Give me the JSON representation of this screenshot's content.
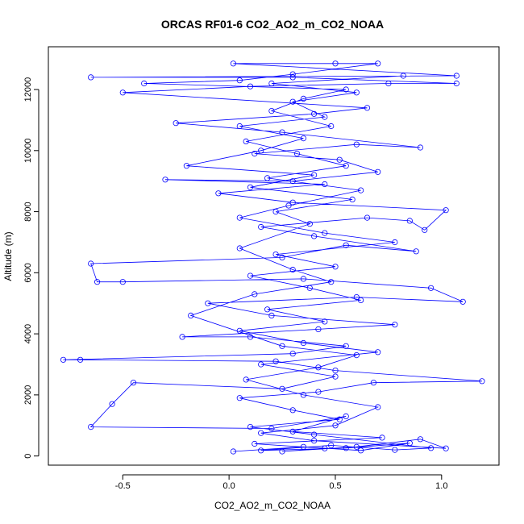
{
  "chart_data": {
    "type": "scatter",
    "title": "ORCAS RF01-6 CO2_AO2_m_CO2_NOAA",
    "xlabel": "CO2_AO2_m_CO2_NOAA",
    "ylabel": "Altitude (m)",
    "xlim": [
      -0.85,
      1.27
    ],
    "ylim": [
      -300,
      13400
    ],
    "x_ticks": [
      -0.5,
      0.0,
      0.5,
      1.0
    ],
    "x_tick_labels": [
      "-0.5",
      "0.0",
      "0.5",
      "1.0"
    ],
    "y_ticks": [
      0,
      2000,
      4000,
      6000,
      8000,
      10000,
      12000
    ],
    "y_tick_labels": [
      "0",
      "2000",
      "4000",
      "6000",
      "8000",
      "10000",
      "12000"
    ],
    "grid": false,
    "legend": "none",
    "series_color": "#0000ff",
    "marker": "open-circle",
    "connected": true,
    "series": [
      {
        "values": [
          [
            0.02,
            150
          ],
          [
            0.35,
            300
          ],
          [
            0.62,
            180
          ],
          [
            0.85,
            420
          ],
          [
            0.55,
            260
          ],
          [
            0.15,
            180
          ],
          [
            0.48,
            350
          ],
          [
            0.78,
            200
          ],
          [
            0.95,
            260
          ],
          [
            0.4,
            700
          ],
          [
            0.1,
            950
          ],
          [
            0.52,
            1200
          ],
          [
            0.3,
            1500
          ],
          [
            0.05,
            1900
          ],
          [
            0.42,
            2100
          ],
          [
            0.68,
            2400
          ],
          [
            1.19,
            2450
          ],
          [
            0.5,
            2800
          ],
          [
            0.22,
            3100
          ],
          [
            -0.7,
            3150
          ],
          [
            -0.78,
            3150
          ],
          [
            0.3,
            3350
          ],
          [
            0.55,
            3600
          ],
          [
            0.1,
            3900
          ],
          [
            -0.22,
            3900
          ],
          [
            0.42,
            4150
          ],
          [
            0.78,
            4300
          ],
          [
            0.2,
            4600
          ],
          [
            -0.1,
            5000
          ],
          [
            0.6,
            5200
          ],
          [
            1.1,
            5050
          ],
          [
            0.95,
            5500
          ],
          [
            0.35,
            5800
          ],
          [
            -0.5,
            5700
          ],
          [
            -0.62,
            5700
          ],
          [
            -0.65,
            6300
          ],
          [
            0.25,
            6500
          ],
          [
            0.55,
            6900
          ],
          [
            0.88,
            6700
          ],
          [
            0.4,
            7200
          ],
          [
            0.15,
            7500
          ],
          [
            0.65,
            7800
          ],
          [
            0.85,
            7700
          ],
          [
            0.92,
            7400
          ],
          [
            1.02,
            8050
          ],
          [
            0.3,
            8300
          ],
          [
            -0.05,
            8600
          ],
          [
            0.45,
            8900
          ],
          [
            -0.3,
            9050
          ],
          [
            0.3,
            9000
          ],
          [
            0.7,
            9300
          ],
          [
            0.52,
            9700
          ],
          [
            0.12,
            9900
          ],
          [
            0.6,
            10200
          ],
          [
            0.9,
            10100
          ],
          [
            0.25,
            10600
          ],
          [
            -0.25,
            10900
          ],
          [
            0.4,
            11200
          ],
          [
            0.65,
            11400
          ],
          [
            -0.5,
            11900
          ],
          [
            0.1,
            12100
          ],
          [
            0.75,
            12200
          ],
          [
            1.07,
            12200
          ],
          [
            0.3,
            12400
          ],
          [
            -0.65,
            12400
          ],
          [
            1.07,
            12450
          ],
          [
            0.02,
            12850
          ],
          [
            0.5,
            12850
          ],
          [
            0.7,
            12850
          ],
          [
            0.3,
            12500
          ],
          [
            0.05,
            12300
          ],
          [
            -0.4,
            12200
          ],
          [
            0.55,
            12000
          ],
          [
            0.35,
            11700
          ],
          [
            0.2,
            11300
          ],
          [
            0.48,
            10800
          ],
          [
            0.08,
            10300
          ],
          [
            0.32,
            9900
          ],
          [
            0.55,
            9500
          ],
          [
            0.18,
            9100
          ],
          [
            0.62,
            8700
          ],
          [
            0.28,
            8200
          ],
          [
            0.05,
            7800
          ],
          [
            0.45,
            7300
          ],
          [
            0.78,
            7000
          ],
          [
            0.22,
            6600
          ],
          [
            0.5,
            6200
          ],
          [
            0.1,
            5900
          ],
          [
            0.38,
            5500
          ],
          [
            0.62,
            5100
          ],
          [
            0.18,
            4800
          ],
          [
            0.45,
            4400
          ],
          [
            0.05,
            4100
          ],
          [
            0.35,
            3700
          ],
          [
            0.7,
            3400
          ],
          [
            0.15,
            3000
          ],
          [
            0.5,
            2600
          ],
          [
            0.25,
            2200
          ],
          [
            -0.45,
            2400
          ],
          [
            -0.55,
            1700
          ],
          [
            -0.65,
            950
          ],
          [
            0.2,
            900
          ],
          [
            0.55,
            1300
          ],
          [
            0.3,
            800
          ],
          [
            0.72,
            600
          ],
          [
            0.12,
            400
          ],
          [
            0.45,
            250
          ],
          [
            0.25,
            150
          ],
          [
            0.6,
            300
          ],
          [
            0.9,
            550
          ],
          [
            1.02,
            250
          ],
          [
            0.4,
            500
          ],
          [
            0.15,
            750
          ],
          [
            0.5,
            1000
          ],
          [
            0.7,
            1600
          ],
          [
            0.35,
            2000
          ],
          [
            0.08,
            2500
          ],
          [
            0.42,
            2900
          ],
          [
            0.6,
            3300
          ],
          [
            0.25,
            3600
          ],
          [
            -0.18,
            4600
          ],
          [
            0.12,
            5300
          ],
          [
            0.48,
            5700
          ],
          [
            0.3,
            6100
          ],
          [
            0.05,
            6800
          ],
          [
            0.38,
            7600
          ],
          [
            0.22,
            8000
          ],
          [
            0.58,
            8400
          ],
          [
            0.1,
            8800
          ],
          [
            0.4,
            9200
          ],
          [
            -0.2,
            9500
          ],
          [
            0.15,
            10000
          ],
          [
            0.35,
            10400
          ],
          [
            0.05,
            10800
          ],
          [
            0.45,
            11100
          ],
          [
            0.3,
            11600
          ],
          [
            0.6,
            11900
          ],
          [
            0.2,
            12200
          ],
          [
            0.82,
            12450
          ]
        ]
      }
    ]
  }
}
